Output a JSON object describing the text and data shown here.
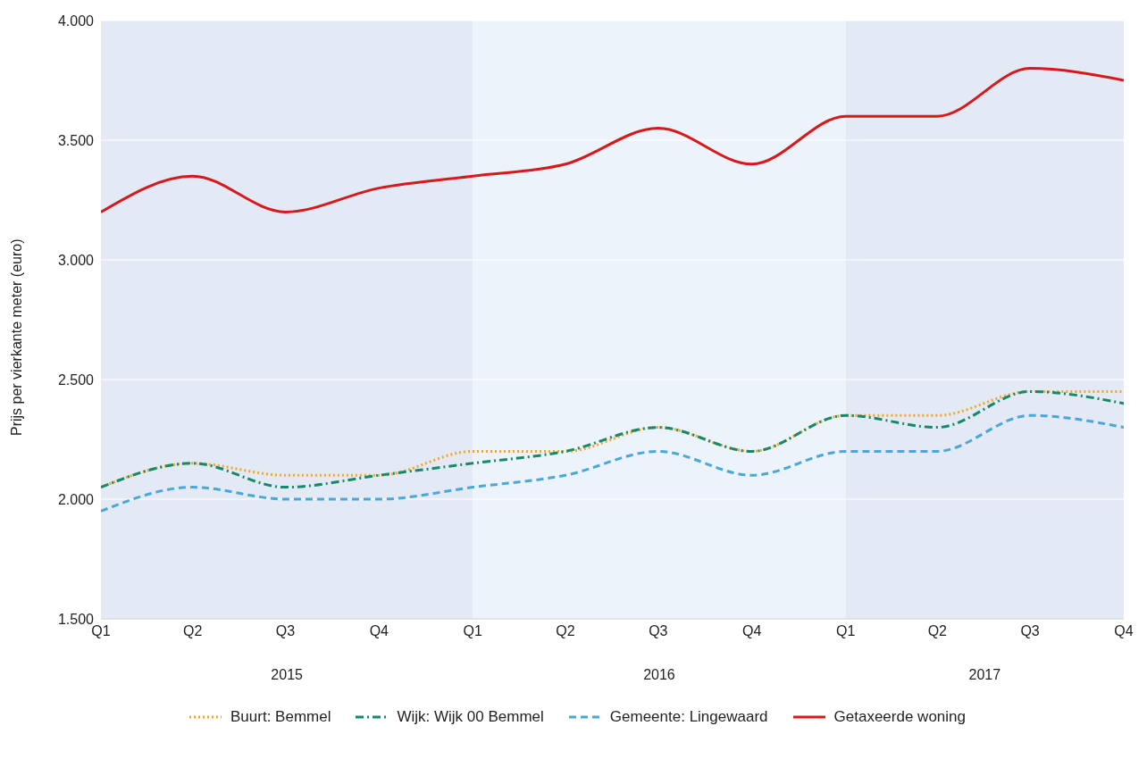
{
  "chart_data": {
    "type": "line",
    "ylabel": "Prijs per vierkante meter (euro)",
    "x": [
      "2015-01",
      "2015-04",
      "2015-07",
      "2015-10",
      "2016-01",
      "2016-04",
      "2016-07",
      "2016-10",
      "2017-01",
      "2017-04",
      "2017-07",
      "2017-10"
    ],
    "xlim": [
      "2015-01",
      "2017-10"
    ],
    "xticks": [
      {
        "value": "2015-01",
        "label": "Q1"
      },
      {
        "value": "2015-04",
        "label": "Q2"
      },
      {
        "value": "2015-07",
        "label": "Q3"
      },
      {
        "value": "2015-10",
        "label": "Q4"
      },
      {
        "value": "2016-01",
        "label": "Q1"
      },
      {
        "value": "2016-04",
        "label": "Q2"
      },
      {
        "value": "2016-07",
        "label": "Q3"
      },
      {
        "value": "2016-10",
        "label": "Q4"
      },
      {
        "value": "2017-01",
        "label": "Q1"
      },
      {
        "value": "2017-04",
        "label": "Q2"
      },
      {
        "value": "2017-07",
        "label": "Q3"
      },
      {
        "value": "2017-10",
        "label": "Q4"
      }
    ],
    "ylim": [
      1500,
      4000
    ],
    "yticks": [
      {
        "value": 1500,
        "label": "1.500"
      },
      {
        "value": 2000,
        "label": "2.000"
      },
      {
        "value": 2500,
        "label": "2.500"
      },
      {
        "value": 3000,
        "label": "3.000"
      },
      {
        "value": 3500,
        "label": "3.500"
      },
      {
        "value": 4000,
        "label": "4.000"
      }
    ],
    "grid": "y",
    "legend": "bottom",
    "marker": "none",
    "bands": [
      {
        "axis": "x",
        "from": "2015-01",
        "to": "2016-01",
        "color": "#e3e9f5"
      },
      {
        "axis": "x",
        "from": "2016-01",
        "to": "2017-01",
        "color": "#edf3fb"
      },
      {
        "axis": "x",
        "from": "2017-01",
        "to": "2017-10",
        "color": "#e3e9f5"
      }
    ],
    "annotations": [
      "2015",
      "2016",
      "2017"
    ],
    "series": [
      {
        "name": "Buurt: Bemmel",
        "color": "#f5a623",
        "line_style": "dotted",
        "values": [
          2050,
          2150,
          2100,
          2100,
          2200,
          2200,
          2300,
          2200,
          2350,
          2350,
          2450,
          2450
        ]
      },
      {
        "name": "Wijk: Wijk 00 Bemmel",
        "color": "#14896b",
        "line_style": "dashdot",
        "values": [
          2050,
          2150,
          2050,
          2100,
          2150,
          2200,
          2300,
          2200,
          2350,
          2300,
          2450,
          2400
        ]
      },
      {
        "name": "Gemeente: Lingewaard",
        "color": "#4aa8d8",
        "line_style": "dashed",
        "values": [
          1950,
          2050,
          2000,
          2000,
          2050,
          2100,
          2200,
          2100,
          2200,
          2200,
          2350,
          2300
        ]
      },
      {
        "name": "Getaxeerde woning",
        "color": "#d7191c",
        "line_style": "solid",
        "values": [
          3200,
          3350,
          3200,
          3300,
          3350,
          3400,
          3550,
          3400,
          3600,
          3600,
          3800,
          3750
        ]
      }
    ]
  }
}
